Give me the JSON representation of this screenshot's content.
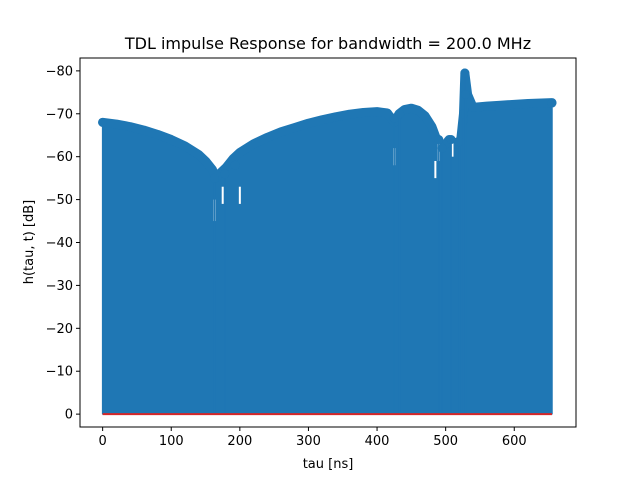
{
  "chart_data": {
    "type": "stem",
    "title": "TDL impulse Response for bandwidth = 200.0 MHz",
    "xlabel": "tau [ns]",
    "ylabel": "h(tau, t) [dB]",
    "xlim": [
      -33,
      690
    ],
    "ylim": [
      3,
      -83
    ],
    "y_inverted": true,
    "xticks": [
      0,
      100,
      200,
      300,
      400,
      500,
      600
    ],
    "xtick_labels": [
      "0",
      "100",
      "200",
      "300",
      "400",
      "500",
      "600"
    ],
    "yticks": [
      0,
      -10,
      -20,
      -30,
      -40,
      -50,
      -60,
      -70,
      -80
    ],
    "ytick_labels": [
      "0",
      "−10",
      "−20",
      "−30",
      "−40",
      "−50",
      "−60",
      "−70",
      "−80"
    ],
    "grid": false,
    "legend": "none",
    "baseline": 0,
    "stem_color": "#1f77b4",
    "baseline_color": "#d62728",
    "envelope": {
      "x": [
        0,
        20,
        40,
        60,
        80,
        100,
        120,
        140,
        150,
        160,
        165,
        170,
        180,
        190,
        200,
        220,
        240,
        260,
        280,
        300,
        320,
        340,
        360,
        380,
        400,
        415,
        425,
        432,
        440,
        450,
        460,
        470,
        480,
        487,
        495,
        505,
        515,
        522,
        526,
        528,
        532,
        540,
        560,
        580,
        600,
        620,
        640,
        655
      ],
      "y": [
        -68,
        -67.6,
        -67,
        -66.2,
        -65.2,
        -64,
        -62.5,
        -60.5,
        -59,
        -57,
        -55,
        -56,
        -57.5,
        -59.5,
        -61,
        -63,
        -64.5,
        -65.8,
        -66.8,
        -67.8,
        -68.6,
        -69.3,
        -69.9,
        -70.3,
        -70.5,
        -70.2,
        -68,
        -70,
        -71,
        -71.3,
        -70.8,
        -69.5,
        -67,
        -64,
        -62,
        -64,
        -63,
        -64,
        -70,
        -79.5,
        -74.5,
        -71.5,
        -71.8,
        -72,
        -72.2,
        -72.4,
        -72.5,
        -72.6
      ]
    },
    "dips": [
      {
        "x": 163,
        "y": -45
      },
      {
        "x": 175,
        "y": -49
      },
      {
        "x": 200,
        "y": -49
      },
      {
        "x": 425,
        "y": -58
      },
      {
        "x": 485,
        "y": -55
      },
      {
        "x": 490,
        "y": -59
      },
      {
        "x": 510,
        "y": -60
      }
    ],
    "markers": [
      {
        "x": 0,
        "y": -68
      },
      {
        "x": 163,
        "y": -55
      },
      {
        "x": 178,
        "y": -56
      },
      {
        "x": 193,
        "y": -58
      },
      {
        "x": 425,
        "y": -69
      },
      {
        "x": 433,
        "y": -70
      },
      {
        "x": 490,
        "y": -64
      },
      {
        "x": 495,
        "y": -62
      },
      {
        "x": 508,
        "y": -64
      },
      {
        "x": 520,
        "y": -63.5
      },
      {
        "x": 526,
        "y": -70
      },
      {
        "x": 528,
        "y": -79.5
      },
      {
        "x": 529,
        "y": -74.5
      },
      {
        "x": 655,
        "y": -72.5
      }
    ]
  }
}
